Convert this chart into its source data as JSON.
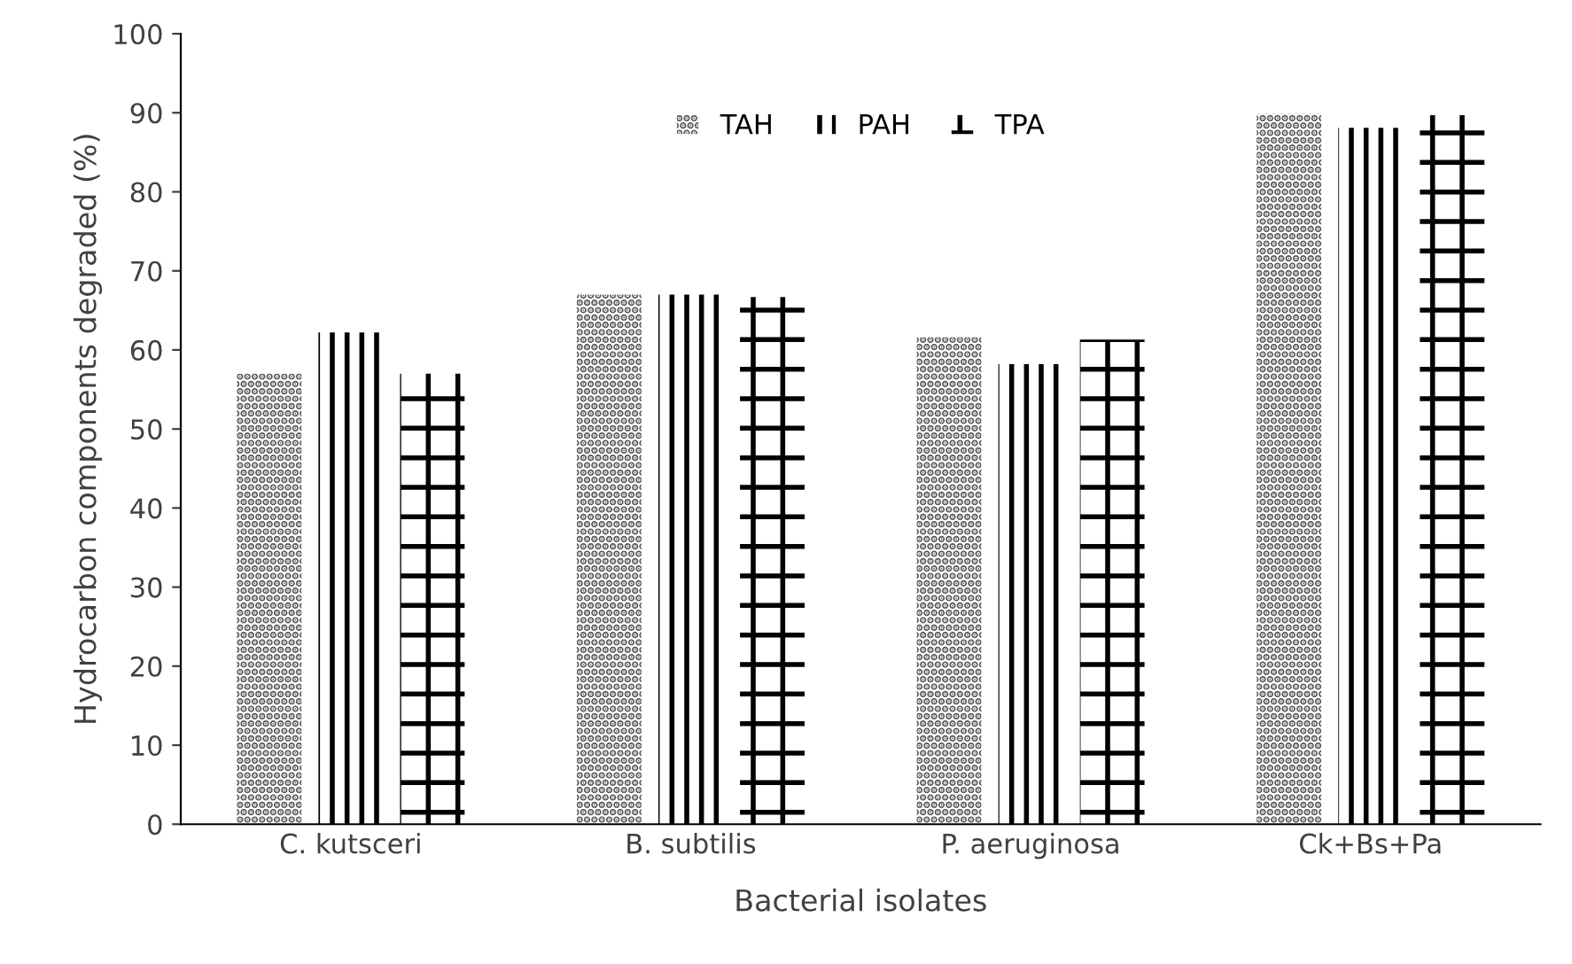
{
  "chart_data": {
    "type": "bar",
    "xlabel": "Bacterial isolates",
    "ylabel": "Hydrocarbon components degraded (%)",
    "categories": [
      "C. kutsceri",
      "B. subtilis",
      "P. aeruginosa",
      "Ck+Bs+Pa"
    ],
    "series": [
      {
        "name": "TAH",
        "color": "#595959",
        "values": [
          57,
          67,
          61.6,
          89.9
        ]
      },
      {
        "name": "PAH",
        "color": "#000000",
        "values": [
          62.2,
          67,
          58.2,
          88.1
        ]
      },
      {
        "name": "TPA",
        "color": "#000000",
        "values": [
          57,
          66.7,
          61.3,
          89.7
        ]
      }
    ],
    "ylim": [
      0,
      100
    ],
    "yticks": [
      0,
      10,
      20,
      30,
      40,
      50,
      60,
      70,
      80,
      90,
      100
    ],
    "grid": false,
    "legend": "top"
  }
}
